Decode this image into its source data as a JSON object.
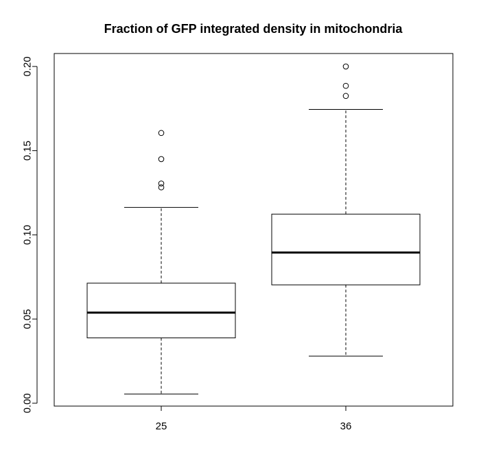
{
  "chart_data": {
    "type": "box",
    "title": "Fraction of GFP integrated density in mitochondria",
    "xlabel": "",
    "ylabel": "",
    "categories": [
      "25",
      "36"
    ],
    "boxes": [
      {
        "category": "25",
        "whisker_low": 0.0055,
        "q1": 0.0388,
        "median": 0.0538,
        "q3": 0.0713,
        "whisker_high": 0.1163,
        "outliers": [
          0.1605,
          0.145,
          0.1305,
          0.1282
        ]
      },
      {
        "category": "36",
        "whisker_low": 0.028,
        "q1": 0.0703,
        "median": 0.0895,
        "q3": 0.1123,
        "whisker_high": 0.1745,
        "outliers": [
          0.2,
          0.1885,
          0.1825
        ]
      }
    ],
    "yticks": [
      "0.00",
      "0.05",
      "0.10",
      "0.15",
      "0.20"
    ],
    "ylim": [
      -0.0017,
      0.2077
    ],
    "grid": false,
    "colors": {
      "box_fill": "#ffffff",
      "stroke": "#000000"
    }
  }
}
